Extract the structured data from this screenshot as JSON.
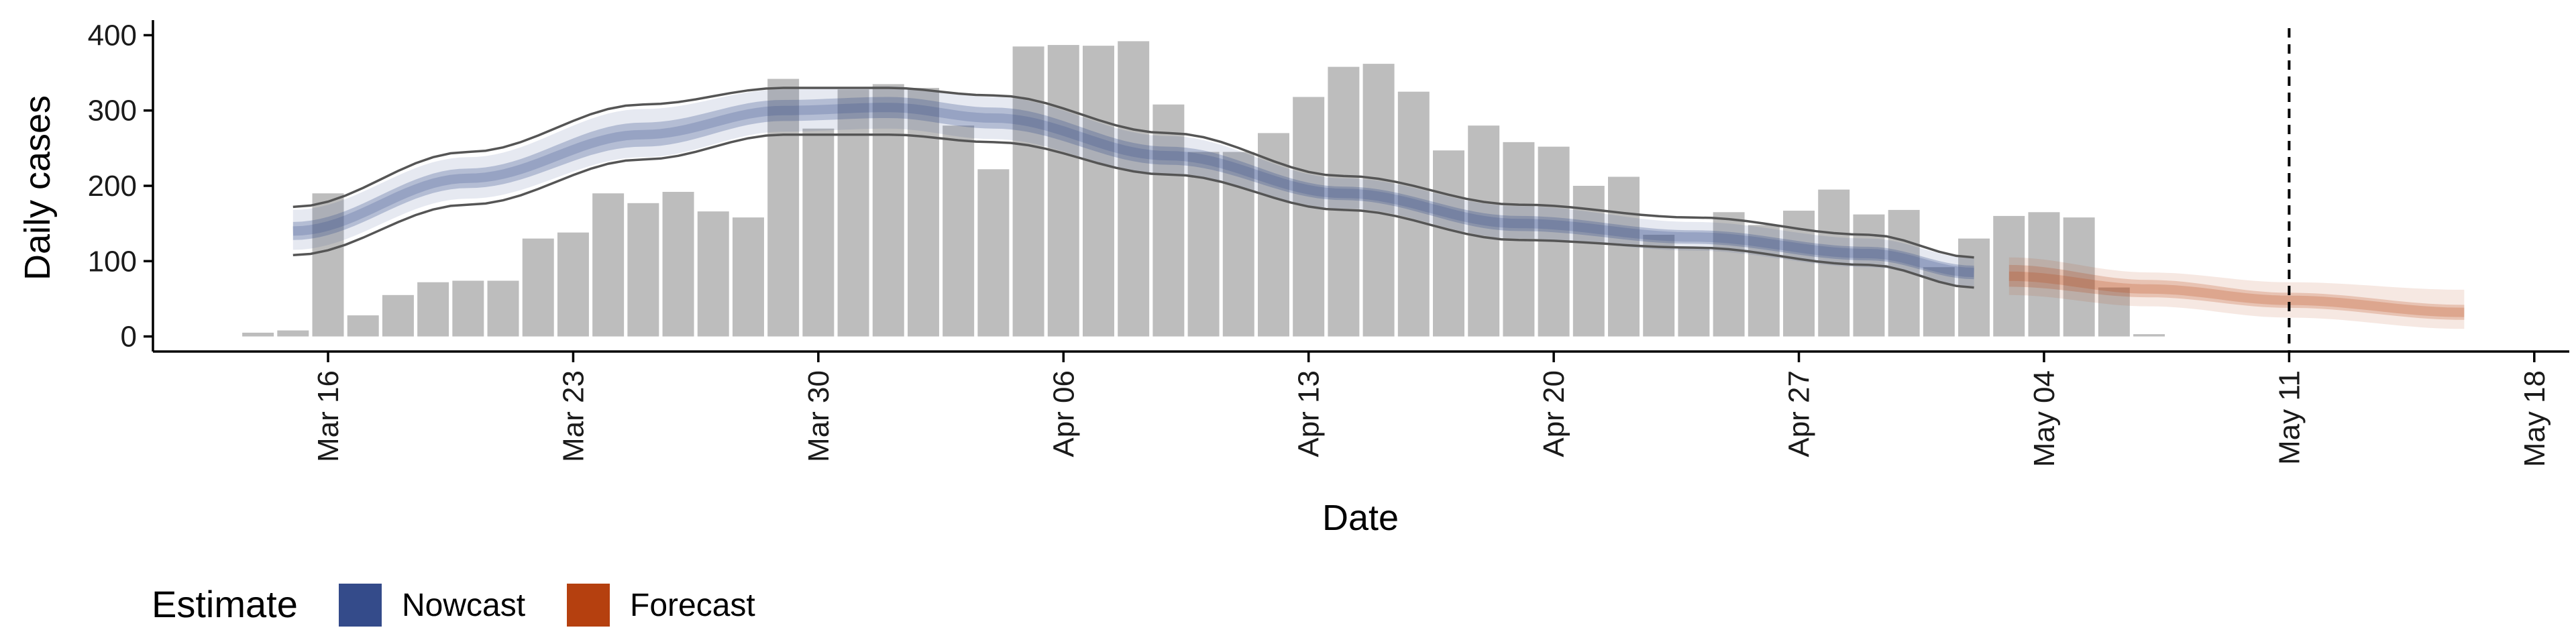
{
  "chart_data": {
    "type": "bar",
    "xlabel": "Date",
    "ylabel": "Daily cases",
    "ylim": [
      -20,
      420
    ],
    "yticks": [
      0,
      100,
      200,
      300,
      400
    ],
    "xlim": [
      "2020-03-11",
      "2020-05-19"
    ],
    "xticks": [
      {
        "date": "2020-03-16",
        "label": "Mar 16"
      },
      {
        "date": "2020-03-23",
        "label": "Mar 23"
      },
      {
        "date": "2020-03-30",
        "label": "Mar 30"
      },
      {
        "date": "2020-04-06",
        "label": "Apr 06"
      },
      {
        "date": "2020-04-13",
        "label": "Apr 13"
      },
      {
        "date": "2020-04-20",
        "label": "Apr 20"
      },
      {
        "date": "2020-04-27",
        "label": "Apr 27"
      },
      {
        "date": "2020-05-04",
        "label": "May 04"
      },
      {
        "date": "2020-05-11",
        "label": "May 11"
      },
      {
        "date": "2020-05-18",
        "label": "May 18"
      }
    ],
    "grid": false,
    "bar_color": "#bdbdbd",
    "bars": {
      "start_date": "2020-03-14",
      "values": [
        5,
        8,
        190,
        28,
        55,
        72,
        74,
        74,
        130,
        138,
        190,
        177,
        192,
        166,
        158,
        342,
        276,
        328,
        335,
        330,
        280,
        222,
        385,
        387,
        386,
        392,
        308,
        245,
        245,
        270,
        318,
        358,
        362,
        325,
        247,
        280,
        258,
        252,
        200,
        212,
        135,
        118,
        165,
        148,
        167,
        195,
        162,
        168,
        92,
        130,
        160,
        165,
        158,
        65,
        3
      ]
    },
    "vline": {
      "date": "2020-05-11",
      "style": "dashed",
      "color": "#000000"
    },
    "series": [
      {
        "name": "Nowcast",
        "color": "#344b8a",
        "band_opacity_outer": 0.12,
        "band_opacity_inner": 0.28,
        "dates_start": "2020-03-15",
        "dates_end": "2020-05-02",
        "knot_days": [
          0,
          5,
          10,
          14,
          17,
          20,
          25,
          30,
          35,
          40,
          45,
          48
        ],
        "median": [
          140,
          210,
          268,
          300,
          304,
          290,
          240,
          190,
          150,
          132,
          110,
          85
        ],
        "inner_lower": [
          128,
          197,
          252,
          286,
          290,
          276,
          228,
          181,
          140,
          123,
          101,
          76
        ],
        "inner_upper": [
          152,
          223,
          284,
          314,
          318,
          304,
          252,
          199,
          160,
          141,
          119,
          94
        ],
        "outer_lower": [
          115,
          183,
          238,
          272,
          276,
          262,
          214,
          170,
          130,
          114,
          92,
          67
        ],
        "outer_upper": [
          168,
          238,
          302,
          328,
          332,
          318,
          266,
          210,
          173,
          152,
          130,
          104
        ],
        "line_lower": [
          108,
          175,
          235,
          268,
          268,
          258,
          215,
          168,
          128,
          118,
          95,
          65
        ],
        "line_upper": [
          172,
          245,
          308,
          330,
          330,
          320,
          270,
          213,
          175,
          158,
          135,
          105
        ]
      },
      {
        "name": "Forecast",
        "color": "#b5400f",
        "band_opacity_outer": 0.12,
        "band_opacity_inner": 0.22,
        "dates_start": "2020-05-03",
        "dates_end": "2020-05-16",
        "knot_days": [
          0,
          4,
          8,
          13
        ],
        "median": [
          80,
          63,
          48,
          32
        ],
        "inner_lower": [
          66,
          52,
          38,
          22
        ],
        "inner_upper": [
          95,
          75,
          58,
          42
        ],
        "outer_lower": [
          55,
          40,
          25,
          10
        ],
        "outer_upper": [
          105,
          85,
          72,
          62
        ]
      }
    ],
    "legend": {
      "title": "Estimate",
      "placement": "bottom-left"
    }
  }
}
